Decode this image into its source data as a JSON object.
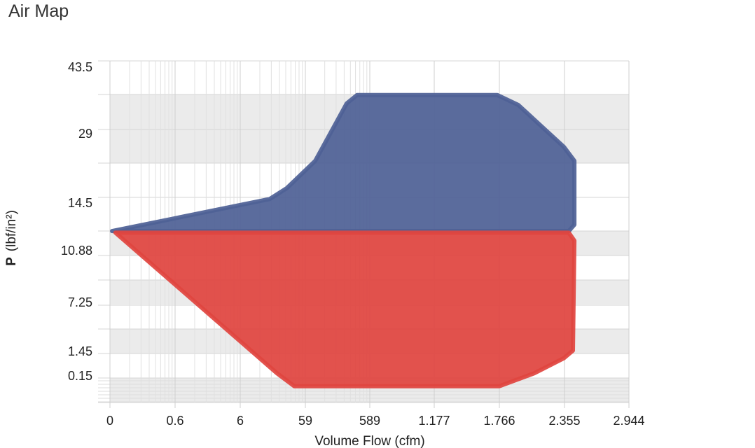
{
  "title": "Air Map",
  "chart_data": {
    "type": "area",
    "title": "Air Map",
    "xlabel": "Volume Flow (cfm)",
    "ylabel_bold": "P",
    "ylabel_unit": "(lbf/in²)",
    "x_ticks": [
      0,
      0.6,
      6,
      59,
      589,
      1177,
      1766,
      2355,
      2944
    ],
    "x_tick_labels": [
      "0",
      "0.6",
      "6",
      "59",
      "589",
      "1.177",
      "1.766",
      "2.355",
      "2.944"
    ],
    "y_ticks": [
      43.5,
      29,
      14.5,
      10.88,
      7.25,
      1.45,
      0.15
    ],
    "y_tick_labels": [
      "43.5",
      "29",
      "14.5",
      "10.88",
      "7.25",
      "1.45",
      "0.15"
    ],
    "xlim": [
      0,
      2944
    ],
    "ylim": [
      0,
      43.5
    ],
    "grid": true,
    "series": [
      {
        "color": "#4f6196",
        "points": [
          [
            0.02,
            12.4
          ],
          [
            30,
            14.4
          ],
          [
            44,
            16.5
          ],
          [
            140,
            22.3
          ],
          [
            399,
            34.5
          ],
          [
            485,
            36.3
          ],
          [
            1747,
            36.3
          ],
          [
            1937,
            34.2
          ],
          [
            2349,
            25.3
          ],
          [
            2445,
            22.3
          ],
          [
            2445,
            12.8
          ],
          [
            2394,
            12.4
          ]
        ]
      },
      {
        "color": "#e0453f",
        "points": [
          [
            0.05,
            12.3
          ],
          [
            2394,
            12.3
          ],
          [
            2445,
            11.8
          ],
          [
            2432,
            1.8
          ],
          [
            2349,
            1.2
          ],
          [
            2080,
            0.4
          ],
          [
            1766,
            0.1
          ],
          [
            50,
            0.1
          ],
          [
            36,
            0.4
          ]
        ]
      }
    ]
  }
}
